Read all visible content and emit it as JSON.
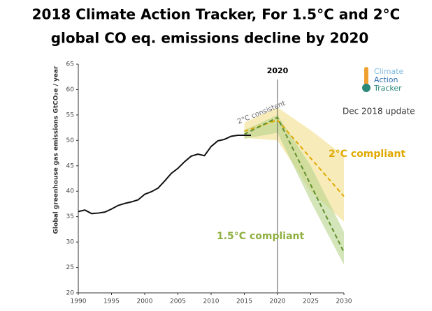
{
  "chart_data": {
    "type": "line",
    "title": [
      "2018 Climate Action Tracker, For 1.5°C and 2°C",
      "global CO eq. emissions decline by 2020"
    ],
    "ylabel": "Global greenhouse gas emissions GtCO₂e / year",
    "xlim": [
      1990,
      2030
    ],
    "xticks": [
      1990,
      1995,
      2000,
      2005,
      2010,
      2015,
      2020,
      2025,
      2030
    ],
    "ylim": [
      20,
      65
    ],
    "yticks": [
      20,
      25,
      30,
      35,
      40,
      45,
      50,
      55,
      60,
      65
    ],
    "vline": {
      "x": 2020,
      "label": "2020"
    },
    "bands": [
      {
        "color": "#f2df8a",
        "x": [
          2015,
          2020,
          2025,
          2030
        ],
        "lower": [
          50.5,
          50,
          40,
          34
        ],
        "upper": [
          53.5,
          56.5,
          52,
          47
        ]
      },
      {
        "color": "#b8d48a",
        "x": [
          2015,
          2020,
          2025,
          2030
        ],
        "lower": [
          50.3,
          51.5,
          38,
          25.5
        ],
        "upper": [
          52,
          55,
          45,
          32
        ]
      }
    ],
    "series": [
      {
        "color": "#111111",
        "dash": false,
        "x": [
          1990,
          1991,
          1992,
          1993,
          1994,
          1995,
          1996,
          1997,
          1998,
          1999,
          2000,
          2001,
          2002,
          2003,
          2004,
          2005,
          2006,
          2007,
          2008,
          2009,
          2010,
          2011,
          2012,
          2013,
          2014,
          2015,
          2016
        ],
        "values": [
          36,
          36.3,
          35.6,
          35.7,
          35.9,
          36.5,
          37.2,
          37.6,
          37.9,
          38.3,
          39.4,
          39.9,
          40.6,
          42,
          43.5,
          44.5,
          45.8,
          46.9,
          47.3,
          47,
          48.8,
          49.9,
          50.2,
          50.8,
          51,
          51,
          51
        ]
      },
      {
        "color": "#e0a800",
        "dash": true,
        "x": [
          2015,
          2020,
          2030
        ],
        "values": [
          51.8,
          54,
          39
        ]
      },
      {
        "color": "#5e8f2e",
        "dash": true,
        "x": [
          2015,
          2020,
          2030
        ],
        "values": [
          51.2,
          54.5,
          28
        ]
      }
    ],
    "annotations": [
      "2°C consistent",
      "2°C compliant",
      "1.5°C compliant",
      "Dec 2018 update"
    ],
    "logo": [
      "Climate",
      "Action",
      "Tracker"
    ]
  }
}
